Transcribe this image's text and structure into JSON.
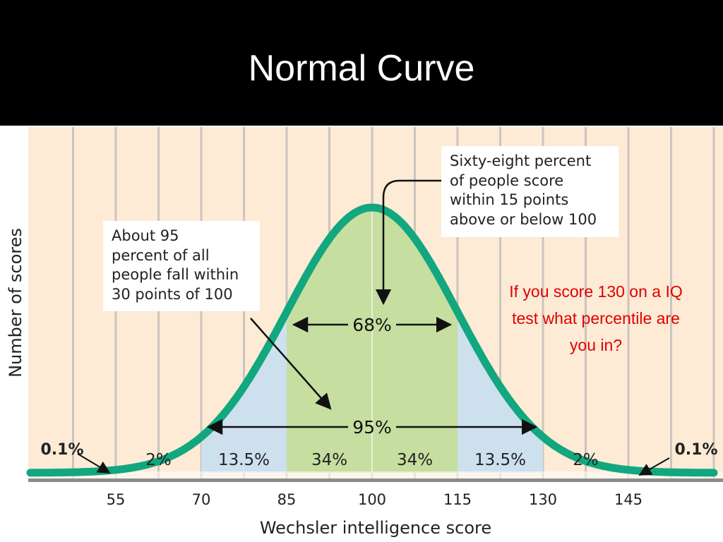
{
  "slide": {
    "title": "Normal Curve",
    "question_lines": [
      "If you score 130 on a IQ",
      "test what percentile are",
      "you in?"
    ]
  },
  "colors": {
    "title_background": "#000000",
    "title_text": "#ffffff",
    "plot_background": "#fdebd6",
    "band_line": "#cac5bd",
    "curve": "#12a77f",
    "inner_band_fill": "#c6dea0",
    "outer_band_fill": "#cde0ee",
    "question_text": "#e00000"
  },
  "chart_data": {
    "type": "area",
    "title": "",
    "xlabel": "Wechsler intelligence score",
    "ylabel": "Number of scores",
    "mean": 100,
    "sd": 15,
    "xlim": [
      40,
      160
    ],
    "x_ticks": [
      55,
      70,
      85,
      100,
      115,
      130,
      145
    ],
    "regions": [
      {
        "from": 40,
        "to": 55,
        "label": "0.1%"
      },
      {
        "from": 55,
        "to": 70,
        "label": "2%"
      },
      {
        "from": 70,
        "to": 85,
        "label": "13.5%"
      },
      {
        "from": 85,
        "to": 100,
        "label": "34%"
      },
      {
        "from": 100,
        "to": 115,
        "label": "34%"
      },
      {
        "from": 115,
        "to": 130,
        "label": "13.5%"
      },
      {
        "from": 130,
        "to": 145,
        "label": "2%"
      },
      {
        "from": 145,
        "to": 160,
        "label": "0.1%"
      }
    ],
    "ranges": [
      {
        "from": 85,
        "to": 115,
        "label": "68%"
      },
      {
        "from": 70,
        "to": 130,
        "label": "95%"
      }
    ],
    "annotations": {
      "sixty_eight": [
        "Sixty-eight percent",
        "of people score",
        "within 15 points",
        "above or below 100"
      ],
      "ninety_five": [
        "About 95",
        "percent of all",
        "people fall within",
        "30 points of 100"
      ]
    }
  }
}
